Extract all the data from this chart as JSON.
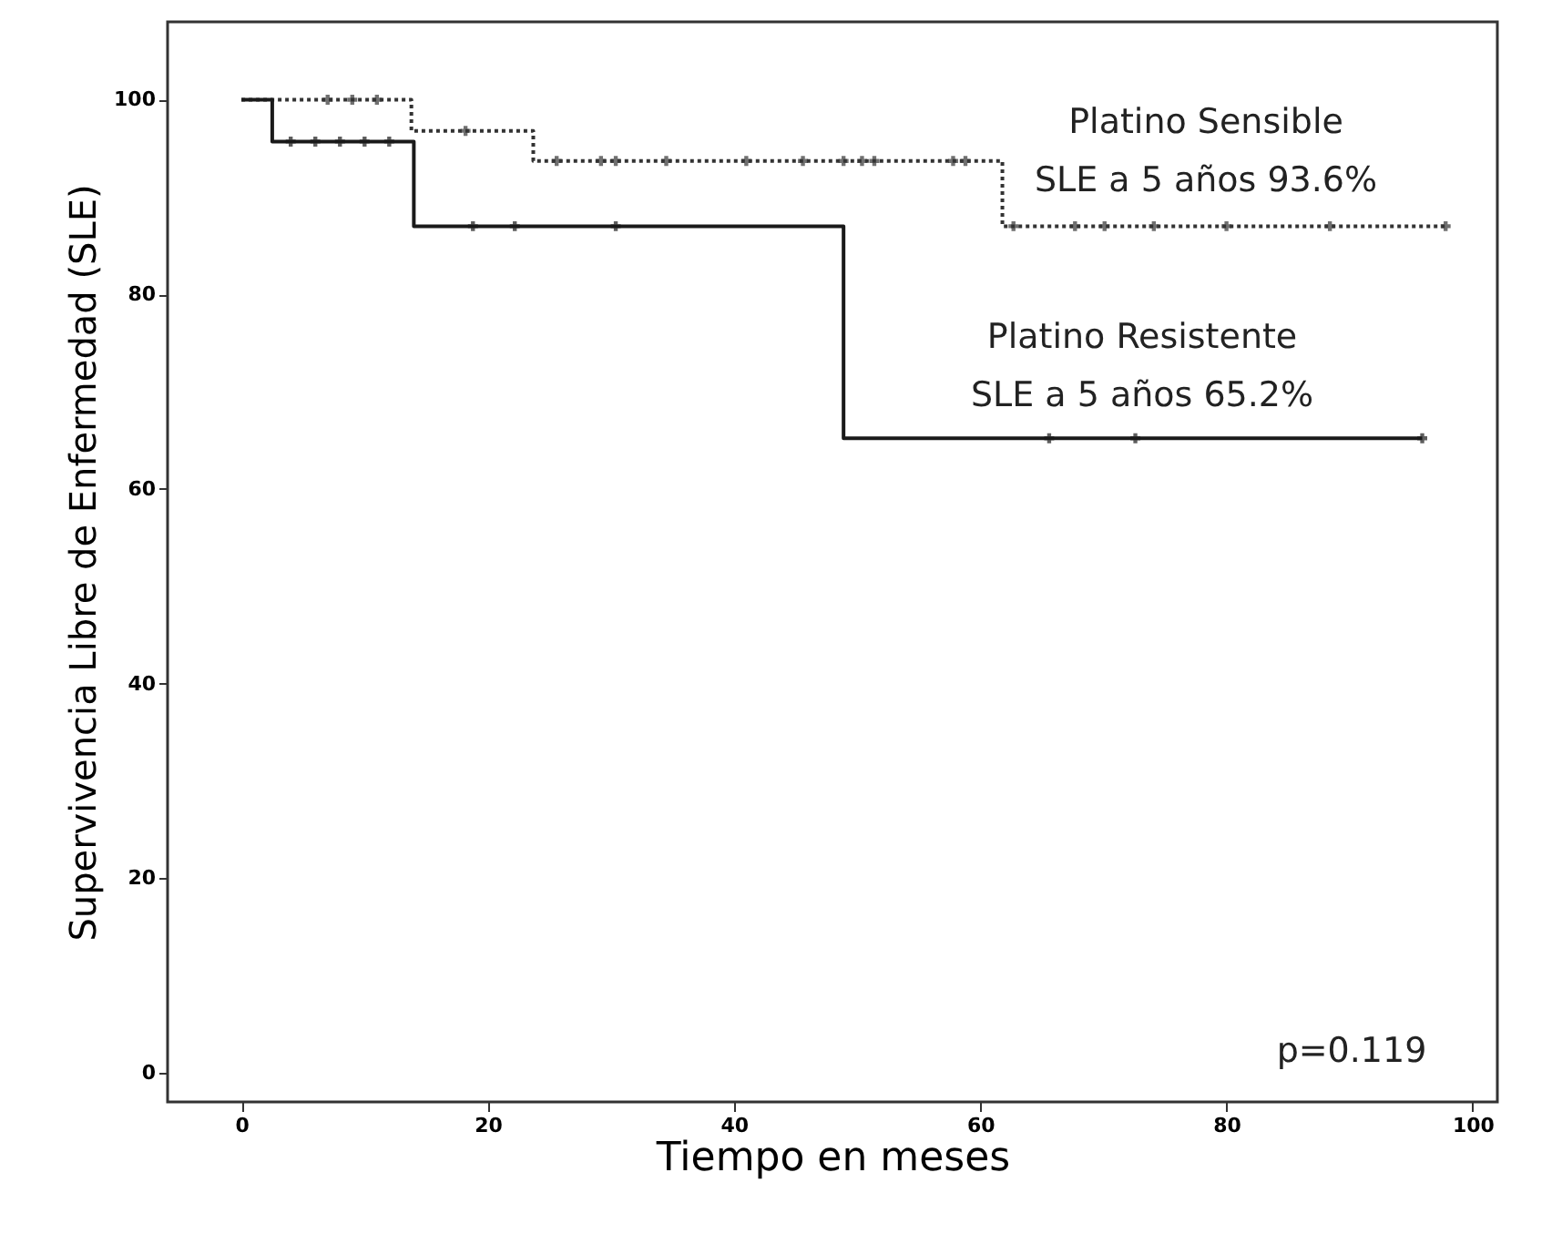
{
  "chart_data": {
    "type": "step",
    "xlabel": "Tiempo en meses",
    "ylabel": "Supervivencia Libre de Enfermedad (SLE)",
    "xlim": [
      -6,
      102
    ],
    "ylim": [
      -3,
      108
    ],
    "xticks": [
      0,
      20,
      40,
      60,
      80,
      100
    ],
    "yticks": [
      0,
      20,
      40,
      60,
      80,
      100
    ],
    "grid": false,
    "annotations": [
      "SLE a 5 años 93.6%",
      "SLE a 5 años 65.2%",
      "p=0.119"
    ],
    "series": [
      {
        "name": "Platino Sensible",
        "color": "#333333",
        "line_style": "dotted",
        "marker": "none",
        "x": [
          0,
          13.8,
          23.7,
          61.8,
          98
        ],
        "values": [
          100,
          96.8,
          93.7,
          87,
          87
        ]
      },
      {
        "name": "Platino Resistente",
        "color": "#1a1a1a",
        "line_style": "solid",
        "marker": "none",
        "x": [
          0,
          2.5,
          14,
          48.9,
          95.9
        ],
        "values": [
          100,
          95.7,
          87,
          65.2,
          65.2
        ]
      },
      {
        "type": "scatter",
        "color": "#333333",
        "marker": "cross",
        "x": [
          7,
          9,
          11,
          18.2,
          25.6,
          29.2,
          30.4,
          34.5,
          41,
          45.6,
          48.9,
          50.4,
          51.4,
          57.8,
          58.8,
          62.7,
          67.7,
          70.1,
          74.1,
          80,
          88.4,
          97.8
        ],
        "values": [
          100,
          100,
          100,
          96.8,
          93.7,
          93.7,
          93.7,
          93.7,
          93.7,
          93.7,
          93.7,
          93.7,
          93.7,
          93.7,
          93.7,
          87,
          87,
          87,
          87,
          87,
          87,
          87
        ]
      },
      {
        "type": "scatter",
        "color": "#1a1a1a",
        "marker": "cross",
        "x": [
          4,
          6,
          8,
          10,
          12,
          18.8,
          22.2,
          30.4,
          65.6,
          72.6,
          95.9
        ],
        "values": [
          95.7,
          95.7,
          95.7,
          95.7,
          95.7,
          87,
          87,
          87,
          65.2,
          65.2,
          65.2
        ]
      }
    ]
  }
}
